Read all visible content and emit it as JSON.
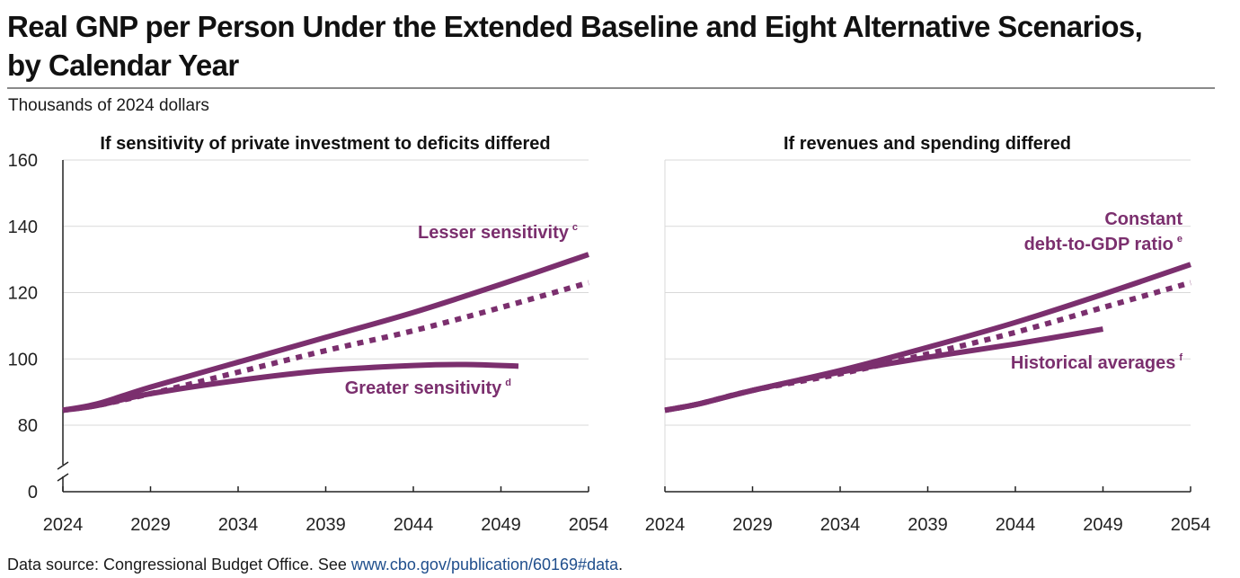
{
  "title_line1": "Real GNP per Person Under the Extended Baseline and Eight Alternative Scenarios,",
  "title_line2": "by Calendar Year",
  "units": "Thousands of 2024 dollars",
  "footer": {
    "prefix": "Data source: Congressional Budget Office. See ",
    "link": "www.cbo.gov/publication/60169#data",
    "suffix": "."
  },
  "colors": {
    "series": "#7b2f6e",
    "grid": "#d9d9d9",
    "axis": "#222222"
  },
  "chart_data": [
    {
      "type": "line",
      "title": "If sensitivity of private investment to deficits differed",
      "xlim": [
        2024,
        2054
      ],
      "ylim": [
        0,
        160
      ],
      "axis_break": [
        0,
        80
      ],
      "yticks": [
        0,
        80,
        100,
        120,
        140,
        160
      ],
      "xticks": [
        2024,
        2029,
        2034,
        2039,
        2044,
        2049,
        2054
      ],
      "grid": "horizontal",
      "series": [
        {
          "name": "Lesser sensitivity",
          "footnote": "c",
          "style": "solid",
          "x": [
            2024,
            2026,
            2029,
            2034,
            2039,
            2044,
            2049,
            2054
          ],
          "y": [
            84.5,
            86.5,
            91.5,
            99,
            106.5,
            114,
            122.5,
            131.5
          ]
        },
        {
          "style": "dotted",
          "x": [
            2024,
            2026,
            2029,
            2034,
            2039,
            2044,
            2049,
            2054
          ],
          "y": [
            84.5,
            86,
            89.5,
            96,
            102.5,
            108.5,
            115.5,
            123
          ]
        },
        {
          "name": "Greater sensitivity",
          "footnote": "d",
          "style": "solid",
          "x": [
            2024,
            2026,
            2029,
            2034,
            2039,
            2044,
            2047,
            2050
          ],
          "y": [
            84.5,
            86,
            89.5,
            93.5,
            96.5,
            98,
            98.3,
            97.8
          ]
        }
      ]
    },
    {
      "type": "line",
      "title": "If revenues and spending differed",
      "xlim": [
        2024,
        2054
      ],
      "ylim": [
        0,
        160
      ],
      "xticks": [
        2024,
        2029,
        2034,
        2039,
        2044,
        2049,
        2054
      ],
      "grid": "horizontal",
      "series": [
        {
          "name": "Constant debt-to-GDP ratio",
          "name_lines": [
            "Constant",
            "debt-to-GDP ratio"
          ],
          "footnote": "e",
          "style": "solid",
          "x": [
            2024,
            2026,
            2029,
            2034,
            2039,
            2044,
            2049,
            2054
          ],
          "y": [
            84.5,
            86.5,
            90.5,
            96.5,
            103.5,
            111,
            119.5,
            128.5
          ]
        },
        {
          "style": "dotted",
          "x": [
            2024,
            2026,
            2029,
            2034,
            2039,
            2044,
            2049,
            2054
          ],
          "y": [
            84.5,
            86.5,
            90.5,
            95.5,
            101.5,
            108,
            115.5,
            123
          ]
        },
        {
          "name": "Historical averages",
          "footnote": "f",
          "style": "solid",
          "x": [
            2024,
            2026,
            2029,
            2034,
            2039,
            2044,
            2049
          ],
          "y": [
            84.5,
            86.5,
            90.5,
            96,
            100.5,
            104.5,
            109
          ]
        }
      ]
    }
  ]
}
